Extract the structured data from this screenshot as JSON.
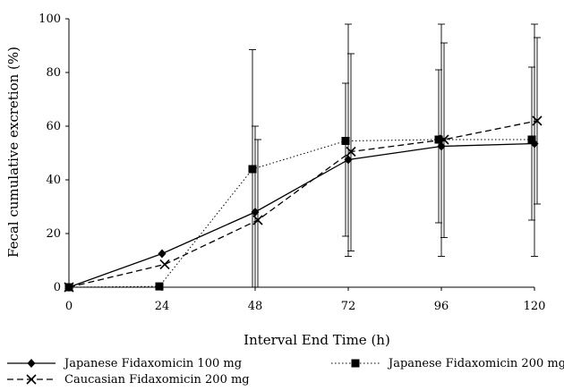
{
  "chart_data": {
    "type": "line",
    "title": "",
    "xlabel": "Interval End Time (h)",
    "ylabel": "Fecal cumulative excretion (%)",
    "x": [
      0,
      24,
      48,
      72,
      96,
      120
    ],
    "xticks": [
      "0",
      "24",
      "48",
      "72",
      "96",
      "120"
    ],
    "yticks": [
      "0",
      "20",
      "40",
      "60",
      "80",
      "100"
    ],
    "xlim": [
      0,
      120
    ],
    "ylim": [
      0,
      100
    ],
    "grid": false,
    "legend_position": "bottom",
    "series": [
      {
        "name": "Japanese Fidaxomicin 100 mg",
        "marker": "diamond",
        "line_style": "solid",
        "values": [
          0,
          12.5,
          28,
          47.5,
          52.5,
          53.5
        ],
        "error_low": [
          0,
          0,
          0,
          11.5,
          11.5,
          11.5
        ],
        "error_high": [
          0,
          0,
          60,
          98,
          98,
          98
        ]
      },
      {
        "name": "Japanese Fidaxomicin 200 mg",
        "marker": "square",
        "line_style": "dotted",
        "values": [
          0,
          0.3,
          44,
          54.5,
          55,
          55
        ],
        "error_low": [
          0,
          0,
          0,
          19,
          24,
          25
        ],
        "error_high": [
          0,
          0,
          88.5,
          76,
          81,
          82
        ]
      },
      {
        "name": "Caucasian Fidaxomicin 200 mg",
        "marker": "x",
        "line_style": "dashed",
        "values": [
          0,
          8.5,
          25,
          50.5,
          55,
          62
        ],
        "error_low": [
          0,
          0,
          0,
          13.5,
          18.5,
          31
        ],
        "error_high": [
          0,
          0,
          55,
          87,
          91,
          93
        ]
      }
    ]
  }
}
